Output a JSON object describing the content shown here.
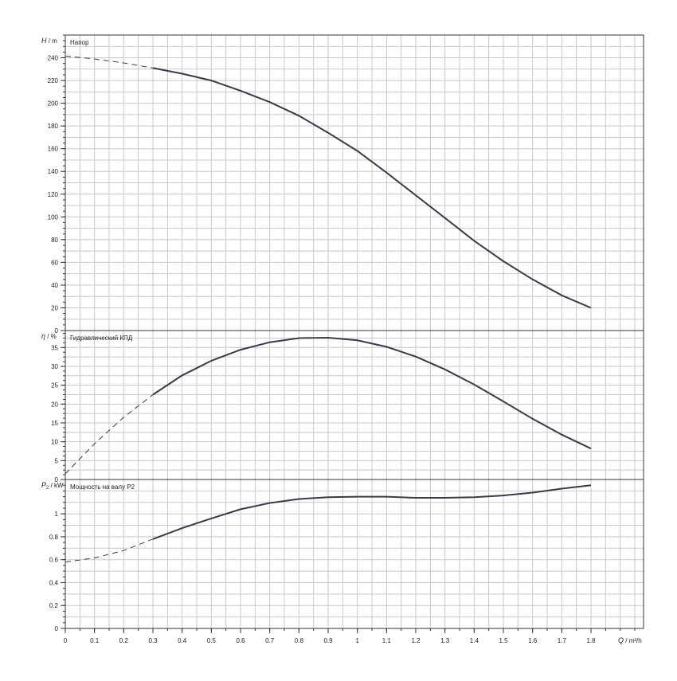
{
  "chart_data": [
    {
      "type": "line",
      "panel": "head",
      "ylabel_symbol": "H",
      "ylabel_unit": "m",
      "title": "Напор",
      "ylim": [
        0,
        260
      ],
      "yticks": [
        0,
        20,
        40,
        60,
        80,
        100,
        120,
        140,
        160,
        180,
        200,
        220,
        240
      ],
      "color": "#3a3a4a",
      "series": [
        {
          "dashed": [
            [
              0,
              241.5
            ],
            [
              0.1,
              239
            ],
            [
              0.2,
              235.5
            ],
            [
              0.3,
              231
            ]
          ],
          "solid": [
            [
              0.3,
              231
            ],
            [
              0.4,
              226
            ],
            [
              0.5,
              220
            ],
            [
              0.6,
              211
            ],
            [
              0.7,
              201
            ],
            [
              0.8,
              189
            ],
            [
              0.9,
              174
            ],
            [
              1.0,
              158
            ],
            [
              1.1,
              139
            ],
            [
              1.2,
              119
            ],
            [
              1.3,
              99
            ],
            [
              1.4,
              79
            ],
            [
              1.5,
              61
            ],
            [
              1.6,
              45
            ],
            [
              1.7,
              31
            ],
            [
              1.8,
              20
            ]
          ]
        }
      ]
    },
    {
      "type": "line",
      "panel": "efficiency",
      "ylabel_symbol": "η",
      "ylabel_unit": "%",
      "title": "Гидравлический КПД",
      "ylim": [
        0,
        39.5
      ],
      "yticks": [
        0,
        5,
        10,
        15,
        20,
        25,
        30,
        35
      ],
      "color": "#3a3a4a",
      "series": [
        {
          "dashed": [
            [
              0,
              1.5
            ],
            [
              0.1,
              9.5
            ],
            [
              0.2,
              16.5
            ],
            [
              0.3,
              22.5
            ]
          ],
          "solid": [
            [
              0.3,
              22.5
            ],
            [
              0.4,
              27.6
            ],
            [
              0.5,
              31.5
            ],
            [
              0.6,
              34.4
            ],
            [
              0.7,
              36.4
            ],
            [
              0.8,
              37.5
            ],
            [
              0.9,
              37.6
            ],
            [
              1.0,
              36.9
            ],
            [
              1.1,
              35.2
            ],
            [
              1.2,
              32.6
            ],
            [
              1.3,
              29.2
            ],
            [
              1.4,
              25.2
            ],
            [
              1.5,
              20.7
            ],
            [
              1.6,
              16.1
            ],
            [
              1.7,
              11.9
            ],
            [
              1.8,
              8.2
            ]
          ]
        }
      ]
    },
    {
      "type": "line",
      "panel": "power",
      "ylabel_symbol": "P",
      "ylabel_subscript": "2",
      "ylabel_unit": "kW",
      "title": "Мощность на валу P2",
      "ylim": [
        0,
        1.3
      ],
      "yticks": [
        0,
        0.2,
        0.4,
        0.6,
        0.8,
        1
      ],
      "ytick_labels": [
        "0",
        "0.2",
        "0.4",
        "0.6",
        "0.8",
        "1"
      ],
      "color": "#3a3a4a",
      "series": [
        {
          "dashed": [
            [
              0,
              0.58
            ],
            [
              0.1,
              0.615
            ],
            [
              0.2,
              0.68
            ],
            [
              0.3,
              0.78
            ]
          ],
          "solid": [
            [
              0.3,
              0.78
            ],
            [
              0.4,
              0.875
            ],
            [
              0.5,
              0.96
            ],
            [
              0.6,
              1.04
            ],
            [
              0.7,
              1.095
            ],
            [
              0.8,
              1.13
            ],
            [
              0.9,
              1.145
            ],
            [
              1.0,
              1.15
            ],
            [
              1.1,
              1.15
            ],
            [
              1.2,
              1.14
            ],
            [
              1.3,
              1.14
            ],
            [
              1.4,
              1.145
            ],
            [
              1.5,
              1.16
            ],
            [
              1.6,
              1.185
            ],
            [
              1.7,
              1.22
            ],
            [
              1.8,
              1.25
            ]
          ]
        }
      ]
    }
  ],
  "x_axis": {
    "xlim": [
      0,
      1.98
    ],
    "xticks": [
      0,
      0.1,
      0.2,
      0.3,
      0.4,
      0.5,
      0.6,
      0.7,
      0.8,
      0.9,
      1,
      1.1,
      1.2,
      1.3,
      1.4,
      1.5,
      1.6,
      1.7,
      1.8
    ],
    "xtick_labels": [
      "0",
      "0.1",
      "0.2",
      "0.3",
      "0.4",
      "0.5",
      "0.6",
      "0.7",
      "0.8",
      "0.9",
      "1",
      "1.1",
      "1.2",
      "1.3",
      "1.4",
      "1.5",
      "1.6",
      "1.7",
      "1.8"
    ],
    "xlabel_symbol": "Q",
    "xlabel_unit": "m³/h",
    "grid": true
  }
}
